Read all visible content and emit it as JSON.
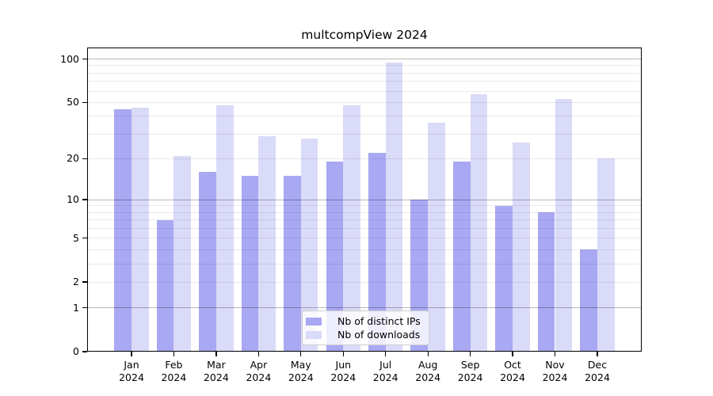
{
  "chart_data": {
    "type": "bar",
    "title": "multcompView 2024",
    "categories": [
      "Jan",
      "Feb",
      "Mar",
      "Apr",
      "May",
      "Jun",
      "Jul",
      "Aug",
      "Sep",
      "Oct",
      "Nov",
      "Dec"
    ],
    "x_tick_year": "2024",
    "series": [
      {
        "name": "Nb of distinct IPs",
        "color": "#a8a8f3",
        "values": [
          45,
          7,
          16,
          15,
          15,
          19,
          22,
          10,
          19,
          9,
          8,
          4
        ]
      },
      {
        "name": "Nb of downloads",
        "color": "#dadaf9",
        "values": [
          46,
          21,
          48,
          29,
          28,
          48,
          95,
          36,
          57,
          26,
          53,
          20
        ]
      }
    ],
    "y_scale": "log1p",
    "ylim": [
      0,
      100
    ],
    "y_ticks": [
      0,
      1,
      2,
      5,
      10,
      20,
      50,
      100
    ],
    "grid": {
      "major_lines": [
        1,
        10,
        100
      ],
      "minor_lines": [
        2,
        3,
        4,
        5,
        6,
        7,
        8,
        9,
        20,
        30,
        40,
        50,
        60,
        70,
        80,
        90
      ]
    },
    "legend_position": "lower center",
    "colors": {
      "distinct_ips": "#a8a8f3",
      "downloads": "#dadaf9",
      "grid_major": "#b8b8b8",
      "grid_minor": "#ececec",
      "axis": "#000000",
      "background": "#ffffff"
    }
  }
}
